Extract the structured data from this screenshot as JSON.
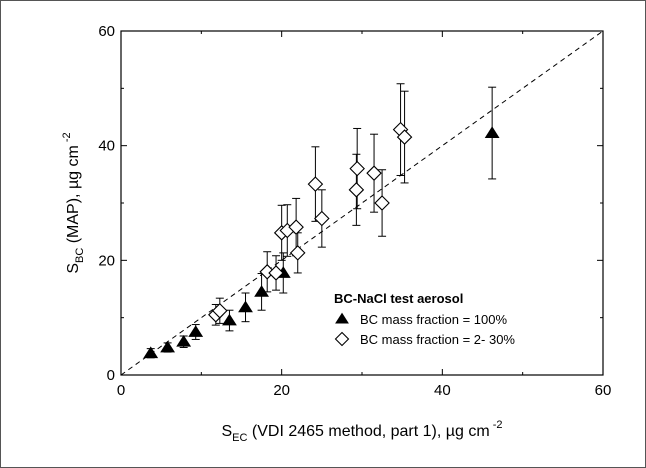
{
  "chart_data": {
    "type": "scatter",
    "xlabel": {
      "main": "S",
      "sub": "EC",
      "rest": " (VDI 2465 method, part 1),  µg cm",
      "sup": " -2"
    },
    "ylabel": {
      "main": "S",
      "sub": "BC",
      "rest": " (MAP),  µg cm",
      "sup": " -2"
    },
    "xlim": [
      0,
      60
    ],
    "ylim": [
      0,
      60
    ],
    "xticks": [
      "0",
      "20",
      "40",
      "60"
    ],
    "yticks": [
      "0",
      "20",
      "40",
      "60"
    ],
    "grid": false,
    "legend_title": "BC-NaCl test aerosol",
    "reference_line": {
      "style": "dashed",
      "from": [
        0,
        0
      ],
      "to": [
        60,
        60
      ]
    },
    "series": [
      {
        "name": "BC mass fraction = 100%",
        "marker": "filled-triangle",
        "points": [
          [
            3.7,
            3.8,
            0.8
          ],
          [
            5.8,
            4.8,
            0.8
          ],
          [
            7.8,
            5.8,
            1.0
          ],
          [
            9.3,
            7.5,
            1.3
          ],
          [
            13.5,
            9.5,
            1.8
          ],
          [
            15.5,
            11.8,
            2.5
          ],
          [
            17.5,
            14.5,
            3.2
          ],
          [
            20.2,
            17.8,
            3.5
          ],
          [
            46.2,
            42.2,
            8.0
          ]
        ]
      },
      {
        "name": "BC mass fraction = 2- 30%",
        "marker": "open-diamond",
        "points": [
          [
            11.8,
            10.5,
            1.8
          ],
          [
            12.3,
            11.2,
            2.2
          ],
          [
            18.2,
            18.0,
            3.5
          ],
          [
            19.3,
            17.8,
            3.0
          ],
          [
            20.0,
            24.8,
            4.8
          ],
          [
            20.7,
            25.2,
            4.5
          ],
          [
            21.8,
            25.8,
            5.0
          ],
          [
            22.0,
            21.3,
            3.5
          ],
          [
            24.2,
            33.3,
            6.5
          ],
          [
            25.0,
            27.3,
            5.0
          ],
          [
            29.3,
            32.3,
            6.2
          ],
          [
            29.4,
            36.0,
            7.0
          ],
          [
            31.5,
            35.2,
            6.8
          ],
          [
            32.5,
            30.0,
            5.8
          ],
          [
            34.8,
            42.8,
            8.0
          ],
          [
            35.3,
            41.5,
            8.0
          ]
        ]
      }
    ]
  }
}
